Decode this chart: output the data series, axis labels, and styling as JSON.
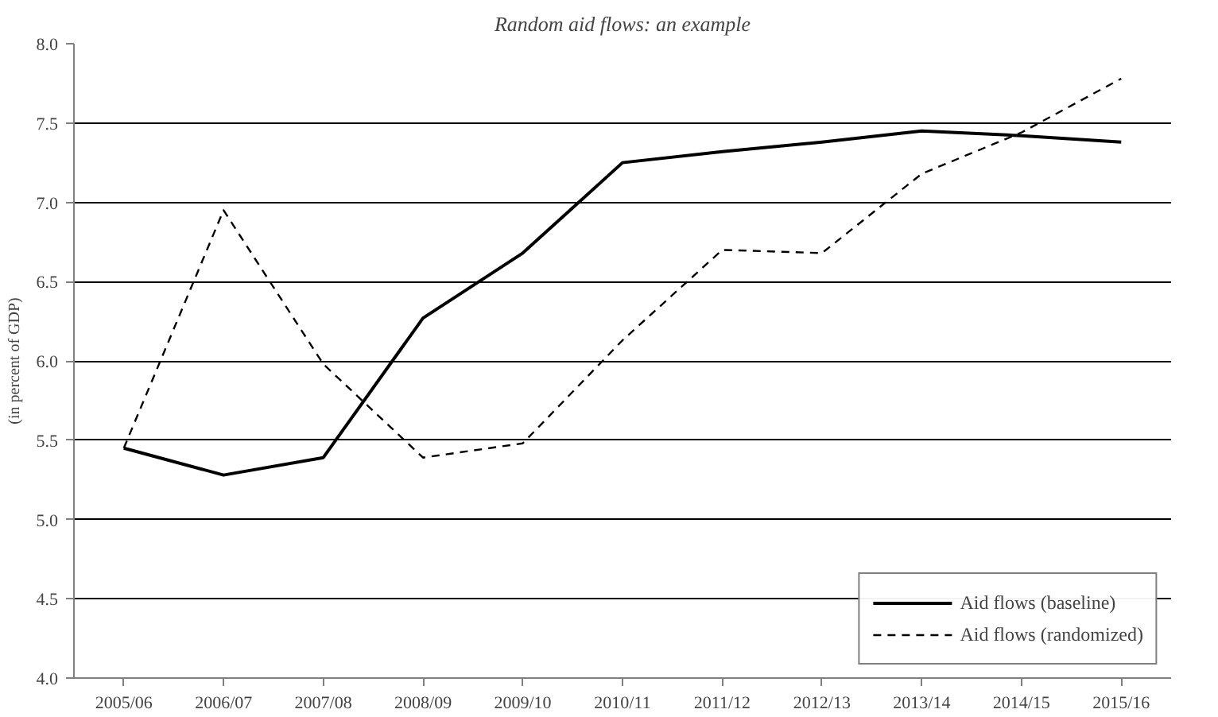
{
  "chart_data": {
    "type": "line",
    "title": "Random aid flows: an example",
    "ylabel": "(in percent of GDP)",
    "categories": [
      "2005/06",
      "2006/07",
      "2007/08",
      "2008/09",
      "2009/10",
      "2010/11",
      "2011/12",
      "2012/13",
      "2013/14",
      "2014/15",
      "2015/16"
    ],
    "series": [
      {
        "name": "Aid flows (baseline)",
        "color": "#000000",
        "line_style": "solid",
        "values": [
          5.45,
          5.28,
          5.39,
          6.27,
          6.68,
          7.25,
          7.32,
          7.38,
          7.45,
          7.42,
          7.38
        ]
      },
      {
        "name": "Aid flows (randomized)",
        "color": "#000000",
        "line_style": "dashed",
        "values": [
          5.45,
          6.95,
          5.98,
          5.39,
          5.48,
          6.13,
          6.7,
          6.68,
          7.18,
          7.44,
          7.78
        ]
      }
    ],
    "ylim": [
      4.0,
      8.0
    ],
    "yticks": [
      {
        "value": 4,
        "label": "4.0"
      },
      4.5,
      {
        "value": 5,
        "label": "5.0"
      },
      5.5,
      {
        "value": 6,
        "label": "6.0"
      },
      6.5,
      {
        "value": 7,
        "label": "7.0"
      },
      7.5,
      {
        "value": 8,
        "label": "8.0"
      }
    ],
    "grid": "y",
    "legend": "bottom right",
    "marker": "none"
  }
}
